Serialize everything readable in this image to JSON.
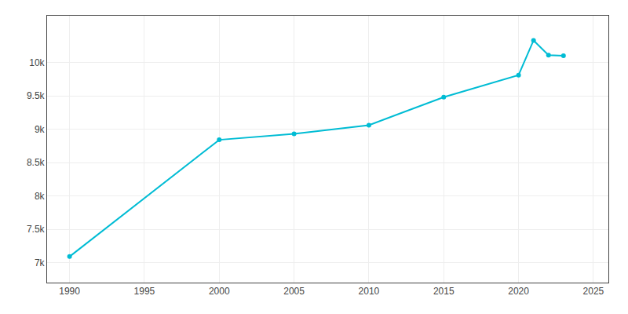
{
  "chart_data": {
    "type": "line",
    "x": [
      1990,
      2000,
      2005,
      2010,
      2015,
      2020,
      2021,
      2022,
      2023
    ],
    "values": [
      7090,
      8840,
      8930,
      9060,
      9480,
      9810,
      10330,
      10110,
      10100
    ],
    "color": "#00BCD4",
    "marker": "circle",
    "xlim": [
      1988.5,
      2026
    ],
    "xticks": [
      1990,
      1995,
      2000,
      2005,
      2010,
      2015,
      2020,
      2025
    ],
    "ylim": [
      6700,
      10700
    ],
    "yticks": [
      {
        "value": 7000,
        "label": "7k"
      },
      {
        "value": 7500,
        "label": "7.5k"
      },
      {
        "value": 8000,
        "label": "8k"
      },
      {
        "value": 8500,
        "label": "8.5k"
      },
      {
        "value": 9000,
        "label": "9k"
      },
      {
        "value": 9500,
        "label": "9.5k"
      },
      {
        "value": 10000,
        "label": "10k"
      }
    ],
    "grid": true
  }
}
